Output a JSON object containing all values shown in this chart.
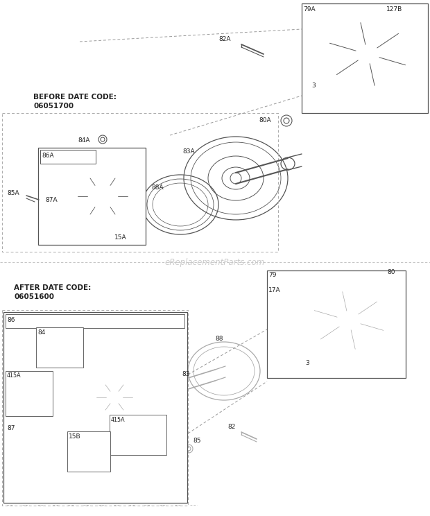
{
  "bg_color": "#ffffff",
  "line_color": "#555555",
  "light_line_color": "#aaaaaa",
  "text_color": "#222222",
  "watermark_color": "#cccccc",
  "before_title": "BEFORE DATE CODE:",
  "before_code": "06051700",
  "after_title": "AFTER DATE CODE:",
  "after_code": "06051600",
  "watermark": "eReplacementParts.com",
  "fig_width": 6.2,
  "fig_height": 7.44
}
